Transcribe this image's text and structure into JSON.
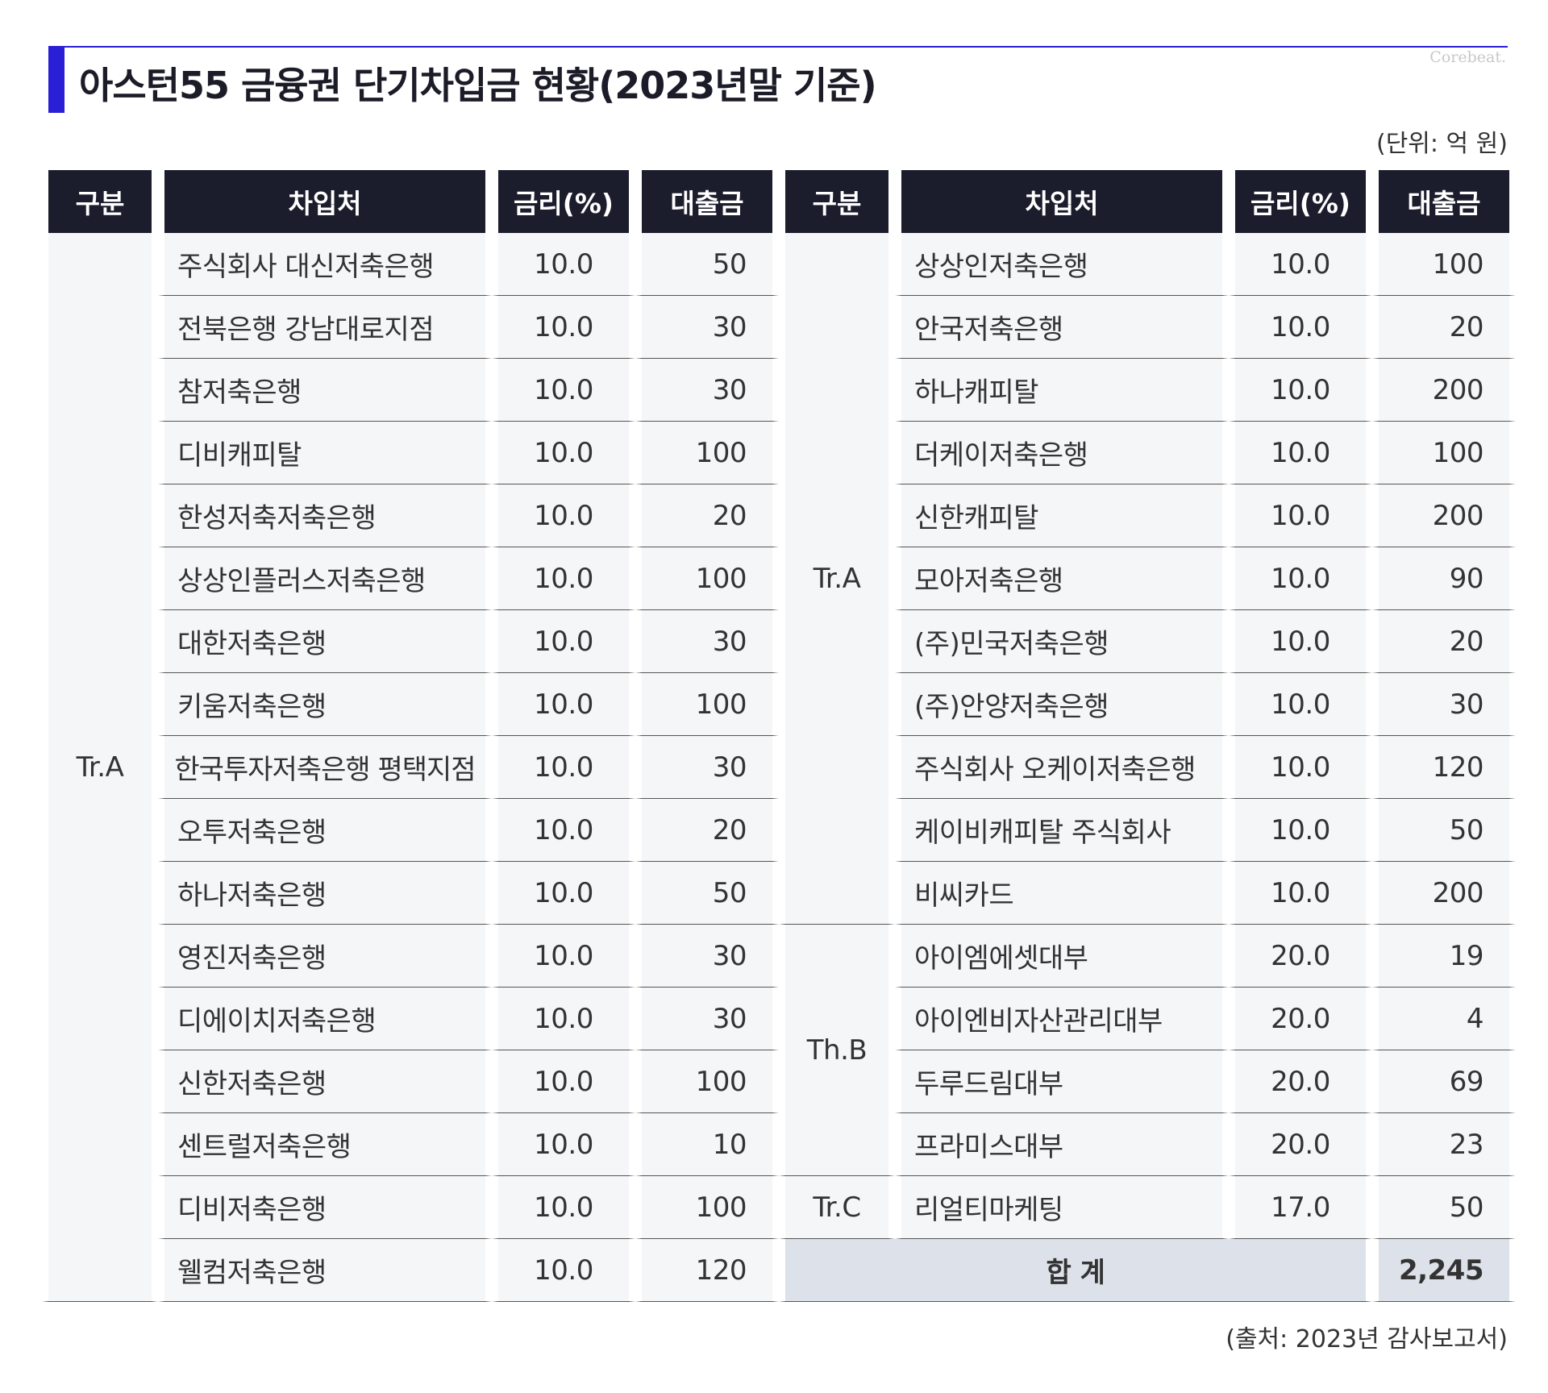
{
  "title": "아스턴55 금융권 단기차입금 현황(2023년말 기준)",
  "brand": "Corebeat.",
  "unit": "(단위: 억 원)",
  "source": "(출처: 2023년 감사보고서)",
  "headers": {
    "group": "구분",
    "lender": "차입처",
    "rate": "금리(%)",
    "amount": "대출금"
  },
  "left": {
    "group": "Tr.A",
    "rows": [
      {
        "name": "주식회사 대신저축은행",
        "rate": "10.0",
        "amount": "50"
      },
      {
        "name": "전북은행 강남대로지점",
        "rate": "10.0",
        "amount": "30"
      },
      {
        "name": "참저축은행",
        "rate": "10.0",
        "amount": "30"
      },
      {
        "name": "디비캐피탈",
        "rate": "10.0",
        "amount": "100"
      },
      {
        "name": "한성저축저축은행",
        "rate": "10.0",
        "amount": "20"
      },
      {
        "name": "상상인플러스저축은행",
        "rate": "10.0",
        "amount": "100"
      },
      {
        "name": "대한저축은행",
        "rate": "10.0",
        "amount": "30"
      },
      {
        "name": "키움저축은행",
        "rate": "10.0",
        "amount": "100"
      },
      {
        "name": "한국투자저축은행 평택지점",
        "rate": "10.0",
        "amount": "30"
      },
      {
        "name": "오투저축은행",
        "rate": "10.0",
        "amount": "20"
      },
      {
        "name": "하나저축은행",
        "rate": "10.0",
        "amount": "50"
      },
      {
        "name": "영진저축은행",
        "rate": "10.0",
        "amount": "30"
      },
      {
        "name": "디에이치저축은행",
        "rate": "10.0",
        "amount": "30"
      },
      {
        "name": "신한저축은행",
        "rate": "10.0",
        "amount": "100"
      },
      {
        "name": "센트럴저축은행",
        "rate": "10.0",
        "amount": "10"
      },
      {
        "name": "디비저축은행",
        "rate": "10.0",
        "amount": "100"
      },
      {
        "name": "웰컴저축은행",
        "rate": "10.0",
        "amount": "120"
      }
    ]
  },
  "right": {
    "groups": [
      {
        "label": "Tr.A",
        "rows": [
          {
            "name": "상상인저축은행",
            "rate": "10.0",
            "amount": "100"
          },
          {
            "name": "안국저축은행",
            "rate": "10.0",
            "amount": "20"
          },
          {
            "name": "하나캐피탈",
            "rate": "10.0",
            "amount": "200"
          },
          {
            "name": "더케이저축은행",
            "rate": "10.0",
            "amount": "100"
          },
          {
            "name": "신한캐피탈",
            "rate": "10.0",
            "amount": "200"
          },
          {
            "name": "모아저축은행",
            "rate": "10.0",
            "amount": "90"
          },
          {
            "name": "(주)민국저축은행",
            "rate": "10.0",
            "amount": "20"
          },
          {
            "name": "(주)안양저축은행",
            "rate": "10.0",
            "amount": "30"
          },
          {
            "name": "주식회사 오케이저축은행",
            "rate": "10.0",
            "amount": "120"
          },
          {
            "name": "케이비캐피탈 주식회사",
            "rate": "10.0",
            "amount": "50"
          },
          {
            "name": "비씨카드",
            "rate": "10.0",
            "amount": "200"
          }
        ]
      },
      {
        "label": "Th.B",
        "rows": [
          {
            "name": "아이엠에셋대부",
            "rate": "20.0",
            "amount": "19"
          },
          {
            "name": "아이엔비자산관리대부",
            "rate": "20.0",
            "amount": "4"
          },
          {
            "name": "두루드림대부",
            "rate": "20.0",
            "amount": "69"
          },
          {
            "name": "프라미스대부",
            "rate": "20.0",
            "amount": "23"
          }
        ]
      },
      {
        "label": "Tr.C",
        "rows": [
          {
            "name": "리얼티마케팅",
            "rate": "17.0",
            "amount": "50"
          }
        ]
      }
    ],
    "total_label": "합 계",
    "total_value": "2,245"
  }
}
